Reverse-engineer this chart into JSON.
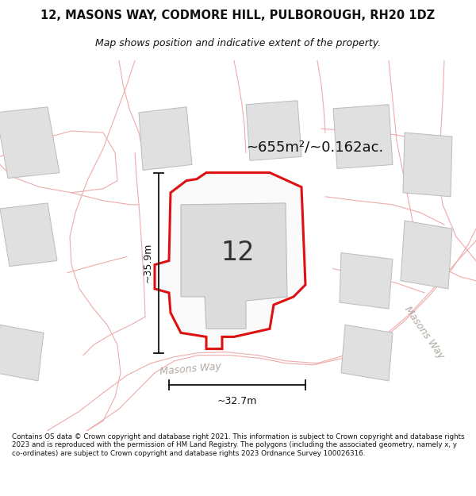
{
  "title": "12, MASONS WAY, CODMORE HILL, PULBOROUGH, RH20 1DZ",
  "subtitle": "Map shows position and indicative extent of the property.",
  "area_text": "~655m²/~0.162ac.",
  "number_label": "12",
  "dim_vertical": "~35.9m",
  "dim_horizontal": "~32.7m",
  "road_label": "Masons Way",
  "road_label2": "Masons Way",
  "footer": "Contains OS data © Crown copyright and database right 2021. This information is subject to Crown copyright and database rights 2023 and is reproduced with the permission of HM Land Registry. The polygons (including the associated geometry, namely x, y co-ordinates) are subject to Crown copyright and database rights 2023 Ordnance Survey 100026316.",
  "map_bg": "#ffffff",
  "plot_fill": "#ffffff",
  "plot_stroke": "#dd1111",
  "parcel_stroke": "#f0aaaa",
  "building_fill": "#e0e0e0",
  "building_stroke": "#bbbbbb",
  "text_color": "#111111",
  "footer_color": "#111111",
  "dim_line_color": "#111111",
  "area_text_color": "#111111",
  "road_text_color": "#b0a8a0"
}
